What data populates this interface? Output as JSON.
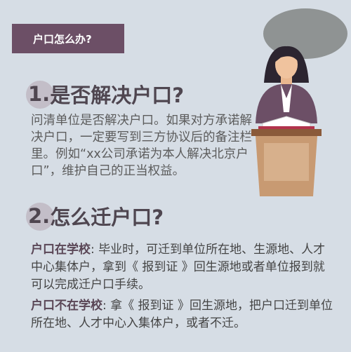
{
  "header": {
    "title": "户口怎么办?"
  },
  "section1": {
    "number": "1.",
    "heading": "是否解决户口?",
    "body": "问清单位是否解决户口。如果对方承诺解决户口，一定要写到三方协议后的备注栏里。例如“xx公司承诺为本人解决北京户口”，维护自己的正当权益。"
  },
  "section2": {
    "number": "2.",
    "heading": "怎么迁户口?",
    "case_in_school": {
      "lead": "户口在学校",
      "text": ": 毕业时，可迁到单位所在地、生源地、人才中心集体户，拿到《 报到证 》回生源地或者单位报到就可以完成迁户口手续。"
    },
    "case_not_in_school": {
      "lead": "户口不在学校",
      "text": ": 拿《 报到证 》回生源地，把户口迁到单位所在地、人才中心入集体户，或者不迁。"
    }
  },
  "colors": {
    "background": "#d6dde5",
    "accent_purple": "#6c4f66",
    "podium": "#c89a72",
    "speech_bubble": "#8f9393"
  }
}
